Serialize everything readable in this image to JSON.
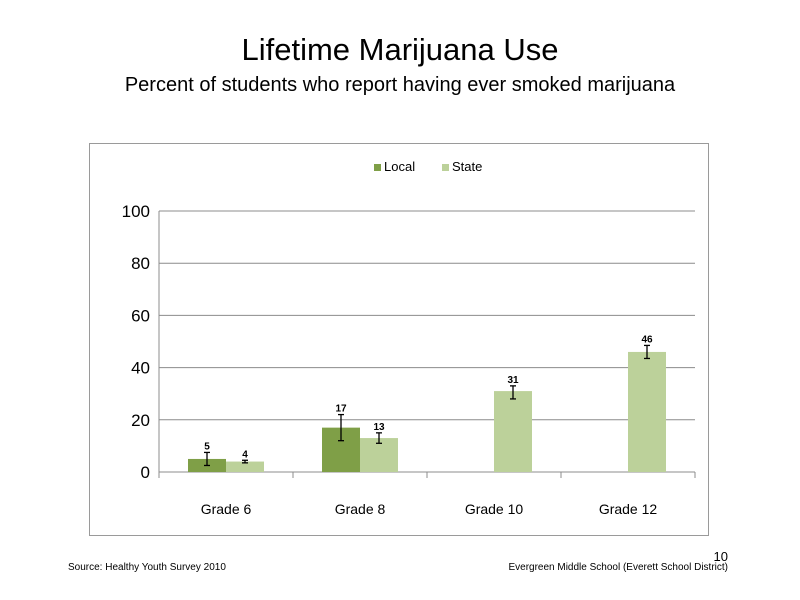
{
  "slide": {
    "title": "Lifetime  Marijuana  Use",
    "subtitle": "Percent  of students  who report having  ever smoked  marijuana",
    "source": "Source: Healthy  Youth Survey 2010",
    "school": "Evergreen Middle  School  (Everett School District)",
    "slide_number": "10"
  },
  "chart_data": {
    "type": "bar",
    "title": "",
    "xlabel": "",
    "ylabel": "",
    "categories": [
      "Grade 6",
      "Grade 8",
      "Grade 10",
      "Grade 12"
    ],
    "ylim": [
      0,
      100
    ],
    "yticks": [
      0,
      20,
      40,
      60,
      80,
      100
    ],
    "grid": true,
    "legend_position": "top-center",
    "series": [
      {
        "name": "Local",
        "color": "#7f9f47",
        "values": [
          5,
          17,
          null,
          null
        ],
        "error_low": [
          2.5,
          12,
          null,
          null
        ],
        "error_high": [
          7.5,
          22,
          null,
          null
        ],
        "labels": [
          "5",
          "17",
          "",
          ""
        ]
      },
      {
        "name": "State",
        "color": "#bcd19a",
        "values": [
          4,
          13,
          31,
          46
        ],
        "error_low": [
          3.5,
          11,
          28,
          43.5
        ],
        "error_high": [
          4.5,
          15,
          33,
          48.5
        ],
        "labels": [
          "4",
          "13",
          "31",
          "46"
        ]
      }
    ]
  }
}
